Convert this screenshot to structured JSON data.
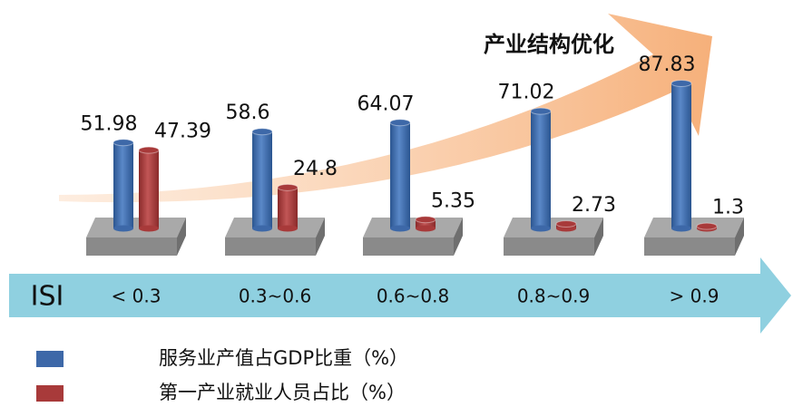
{
  "chart_data": {
    "type": "bar",
    "annotation": "产业结构优化",
    "x_label": "ISI",
    "categories": [
      "< 0.3",
      "0.3~0.6",
      "0.6~0.8",
      "0.8~0.9",
      "> 0.9"
    ],
    "series": [
      {
        "name": "服务业产值占GDP比重（%）",
        "color": "#3d68a8",
        "values": [
          51.98,
          58.6,
          64.07,
          71.02,
          87.83
        ]
      },
      {
        "name": "第一产业就业人员占比（%）",
        "color": "#a83a3a",
        "values": [
          47.39,
          24.8,
          5.35,
          2.73,
          1.3
        ]
      }
    ]
  }
}
